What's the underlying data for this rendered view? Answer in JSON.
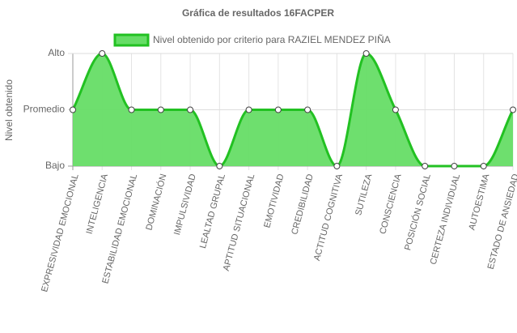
{
  "chart_data": {
    "type": "line",
    "title": "Gráfica de resultados 16FACPER",
    "y_label": "Nivel obtenido",
    "categories": [
      "EXPRESIVIDAD EMOCIONAL",
      "INTELIGENCIA",
      "ESTABILIDAD EMOCIONAL",
      "DOMINACIÓN",
      "IMPULSIVIDAD",
      "LEALTAD GRUPAL",
      "APTITUD SITUACIONAL",
      "EMOTIVIDAD",
      "CREDIBILIDAD",
      "ACTITUD COGNITIVA",
      "SUTILEZA",
      "CONSCIENCIA",
      "POSICIÓN SOCIAL",
      "CERTEZA INDIVIDUAL",
      "AUTOESTIMA",
      "ESTADO DE ANSIEDAD"
    ],
    "series": [
      {
        "name": "Nivel obtenido por criterio para RAZIEL MENDEZ PIÑA",
        "color": "#22c122",
        "fill_color": "#66dd66",
        "values": [
          2,
          3,
          2,
          2,
          2,
          1,
          2,
          2,
          2,
          1,
          3,
          2,
          1,
          1,
          1,
          2
        ]
      }
    ],
    "ylim": [
      1,
      3
    ],
    "yticks": [
      {
        "value": 1,
        "label": "Bajo"
      },
      {
        "value": 2,
        "label": "Promedio"
      },
      {
        "value": 3,
        "label": "Alto"
      }
    ],
    "grid": true,
    "legend": "top"
  }
}
